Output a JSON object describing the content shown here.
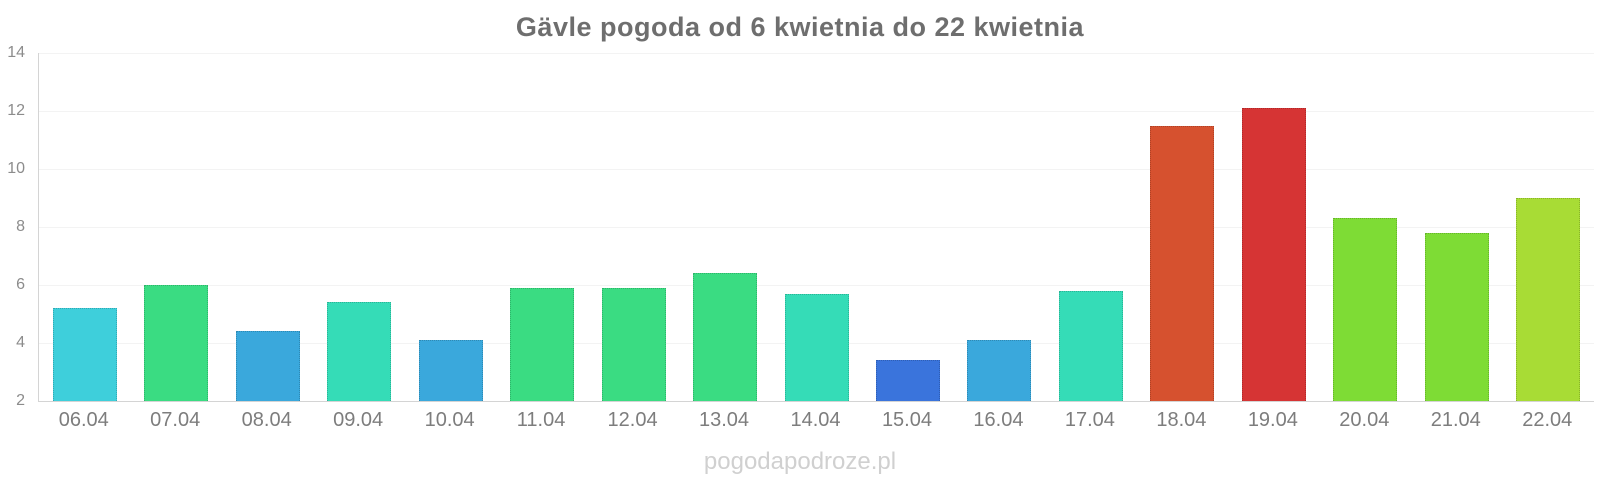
{
  "chart_data": {
    "type": "bar",
    "title": "Gävle pogoda od 6 kwietnia do 22 kwietnia",
    "categories": [
      "06.04",
      "07.04",
      "08.04",
      "09.04",
      "10.04",
      "11.04",
      "12.04",
      "13.04",
      "14.04",
      "15.04",
      "16.04",
      "17.04",
      "18.04",
      "19.04",
      "20.04",
      "21.04",
      "22.04"
    ],
    "values": [
      5.2,
      6.0,
      4.4,
      5.4,
      4.1,
      5.9,
      5.9,
      6.4,
      5.7,
      3.4,
      4.1,
      5.8,
      11.5,
      12.1,
      8.3,
      7.8,
      9.0
    ],
    "bar_colors": [
      "#3ecfdb",
      "#3adc82",
      "#3aa8dc",
      "#35dcb7",
      "#3aa8dc",
      "#3adc82",
      "#3adc82",
      "#3adc82",
      "#35dcb7",
      "#3a74dc",
      "#3aa8dc",
      "#35dcb7",
      "#d6512f",
      "#d63434",
      "#7edc35",
      "#7edc35",
      "#a8dc35"
    ],
    "xlabel": "",
    "ylabel": "",
    "ylim": [
      2,
      14
    ],
    "yticks": [
      2,
      4,
      6,
      8,
      10,
      12,
      14
    ],
    "grid": true,
    "legend": "none"
  },
  "watermark": {
    "text": "pogodapodroze.pl"
  },
  "colors": {
    "title": "#6e6e6e",
    "axis_label": "#8c8c8c",
    "x_label": "#7d7d7d",
    "gridline": "#f3f3f3",
    "axis_line": "#d4d4d4",
    "watermark": "#d0d0d0",
    "background": "#ffffff"
  }
}
